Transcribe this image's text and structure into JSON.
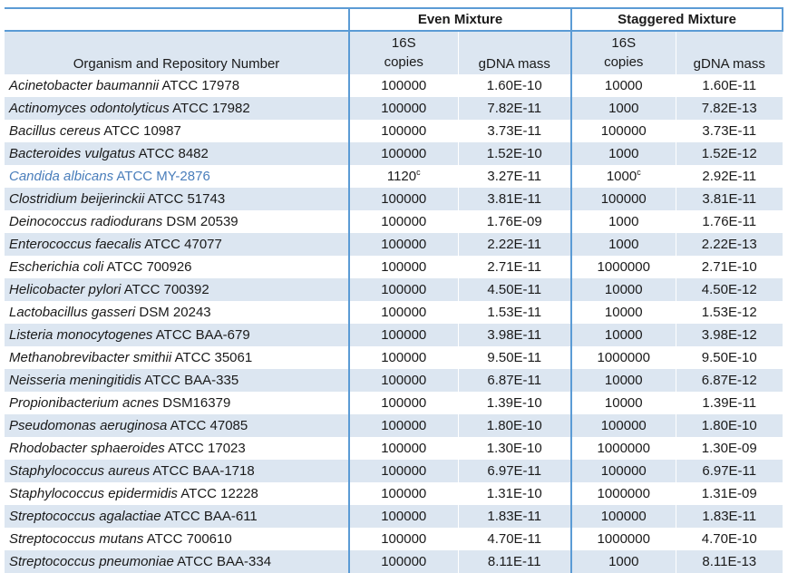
{
  "table": {
    "group_headers": {
      "even": "Even Mixture",
      "staggered": "Staggered Mixture"
    },
    "column_headers": {
      "organism": "Organism and Repository Number",
      "copies_line1": "16S",
      "copies_line2": "copies",
      "gdna": "gDNA mass"
    },
    "colors": {
      "border_blue": "#5b9bd5",
      "stripe_blue": "#dce6f1",
      "highlight_text": "#4a7ebb"
    },
    "rows": [
      {
        "species": "Acinetobacter baumannii",
        "strain": "ATCC 17978",
        "even_copies": "100000",
        "even_mass": "1.60E-10",
        "stag_copies": "10000",
        "stag_mass": "1.60E-11"
      },
      {
        "species": "Actinomyces odontolyticus",
        "strain": "ATCC 17982",
        "even_copies": "100000",
        "even_mass": "7.82E-11",
        "stag_copies": "1000",
        "stag_mass": "7.82E-13"
      },
      {
        "species": "Bacillus cereus",
        "strain": "ATCC 10987",
        "even_copies": "100000",
        "even_mass": "3.73E-11",
        "stag_copies": "100000",
        "stag_mass": "3.73E-11"
      },
      {
        "species": "Bacteroides vulgatus",
        "strain": "ATCC 8482",
        "even_copies": "100000",
        "even_mass": "1.52E-10",
        "stag_copies": "1000",
        "stag_mass": "1.52E-12"
      },
      {
        "species": "Candida albicans",
        "strain": "ATCC MY-2876",
        "highlight": true,
        "even_copies": "1120",
        "even_copies_sup": "c",
        "even_mass": "3.27E-11",
        "stag_copies": "1000",
        "stag_copies_sup": "c",
        "stag_mass": "2.92E-11"
      },
      {
        "species": "Clostridium beijerinckii",
        "strain": "ATCC 51743",
        "even_copies": "100000",
        "even_mass": "3.81E-11",
        "stag_copies": "100000",
        "stag_mass": "3.81E-11"
      },
      {
        "species": "Deinococcus radiodurans",
        "strain": "DSM 20539",
        "even_copies": "100000",
        "even_mass": "1.76E-09",
        "stag_copies": "1000",
        "stag_mass": "1.76E-11"
      },
      {
        "species": "Enterococcus faecalis",
        "strain": "ATCC 47077",
        "even_copies": "100000",
        "even_mass": "2.22E-11",
        "stag_copies": "1000",
        "stag_mass": "2.22E-13"
      },
      {
        "species": "Escherichia coli",
        "strain": "ATCC 700926",
        "even_copies": "100000",
        "even_mass": "2.71E-11",
        "stag_copies": "1000000",
        "stag_mass": "2.71E-10"
      },
      {
        "species": "Helicobacter pylori",
        "strain": "ATCC 700392",
        "even_copies": "100000",
        "even_mass": "4.50E-11",
        "stag_copies": "10000",
        "stag_mass": "4.50E-12"
      },
      {
        "species": "Lactobacillus gasseri",
        "strain": "DSM 20243",
        "even_copies": "100000",
        "even_mass": "1.53E-11",
        "stag_copies": "10000",
        "stag_mass": "1.53E-12"
      },
      {
        "species": "Listeria monocytogenes",
        "strain": "ATCC BAA-679",
        "even_copies": "100000",
        "even_mass": "3.98E-11",
        "stag_copies": "10000",
        "stag_mass": "3.98E-12"
      },
      {
        "species": "Methanobrevibacter smithii",
        "strain": "ATCC 35061",
        "even_copies": "100000",
        "even_mass": "9.50E-11",
        "stag_copies": "1000000",
        "stag_mass": "9.50E-10"
      },
      {
        "species": "Neisseria meningitidis",
        "strain": "ATCC BAA-335",
        "even_copies": "100000",
        "even_mass": "6.87E-11",
        "stag_copies": "10000",
        "stag_mass": "6.87E-12"
      },
      {
        "species": "Propionibacterium acnes",
        "strain": "DSM16379",
        "even_copies": "100000",
        "even_mass": "1.39E-10",
        "stag_copies": "10000",
        "stag_mass": "1.39E-11"
      },
      {
        "species": "Pseudomonas aeruginosa",
        "strain": "ATCC 47085",
        "even_copies": "100000",
        "even_mass": "1.80E-10",
        "stag_copies": "100000",
        "stag_mass": "1.80E-10"
      },
      {
        "species": "Rhodobacter sphaeroides",
        "strain": "ATCC 17023",
        "even_copies": "100000",
        "even_mass": "1.30E-10",
        "stag_copies": "1000000",
        "stag_mass": "1.30E-09"
      },
      {
        "species": "Staphylococcus aureus",
        "strain": "ATCC BAA-1718",
        "even_copies": "100000",
        "even_mass": "6.97E-11",
        "stag_copies": "100000",
        "stag_mass": "6.97E-11"
      },
      {
        "species": "Staphylococcus epidermidis",
        "strain": "ATCC 12228",
        "even_copies": "100000",
        "even_mass": "1.31E-10",
        "stag_copies": "1000000",
        "stag_mass": "1.31E-09"
      },
      {
        "species": "Streptococcus agalactiae",
        "strain": "ATCC BAA-611",
        "even_copies": "100000",
        "even_mass": "1.83E-11",
        "stag_copies": "100000",
        "stag_mass": "1.83E-11"
      },
      {
        "species": "Streptococcus mutans",
        "strain": "ATCC 700610",
        "even_copies": "100000",
        "even_mass": "4.70E-11",
        "stag_copies": "1000000",
        "stag_mass": "4.70E-10"
      },
      {
        "species": "Streptococcus pneumoniae",
        "strain": "ATCC BAA-334",
        "even_copies": "100000",
        "even_mass": "8.11E-11",
        "stag_copies": "1000",
        "stag_mass": "8.11E-13"
      }
    ]
  }
}
